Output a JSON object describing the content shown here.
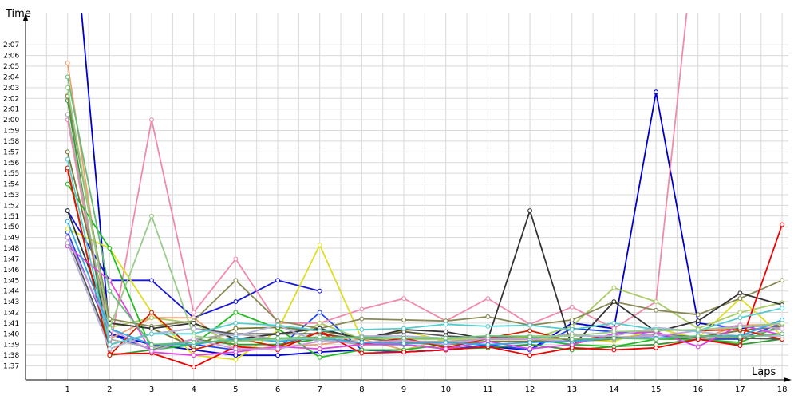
{
  "chart_data": {
    "type": "line",
    "xlabel": "Laps",
    "ylabel": "Time",
    "x": [
      1,
      2,
      3,
      4,
      5,
      6,
      7,
      8,
      9,
      10,
      11,
      12,
      13,
      14,
      15,
      16,
      17,
      18
    ],
    "y_tick_labels": [
      "1:37",
      "1:38",
      "1:39",
      "1:40",
      "1:41",
      "1:42",
      "1:43",
      "1:44",
      "1:45",
      "1:46",
      "1:47",
      "1:48",
      "1:49",
      "1:50",
      "1:51",
      "1:52",
      "1:53",
      "1:54",
      "1:55",
      "1:56",
      "1:57",
      "1:58",
      "1:59",
      "2:00",
      "2:01",
      "2:02",
      "2:03",
      "2:04",
      "2:05",
      "2:06",
      "2:07"
    ],
    "y_tick_values": [
      97,
      98,
      99,
      100,
      101,
      102,
      103,
      104,
      105,
      106,
      107,
      108,
      109,
      110,
      111,
      112,
      113,
      114,
      115,
      116,
      117,
      118,
      119,
      120,
      121,
      122,
      123,
      124,
      125,
      126,
      127
    ],
    "ylim": [
      95.7,
      130
    ],
    "xlim": [
      0,
      18.15
    ],
    "grid": true,
    "series": [
      {
        "color": "#0000cc",
        "values": [
          145,
          100,
          99,
          98.5,
          98,
          98,
          98.3,
          98.5,
          98.3,
          98.5,
          98.8,
          98.5,
          101,
          100.5,
          122.6,
          101,
          100.5,
          101
        ]
      },
      {
        "color": "#1818d8",
        "values": [
          111.5,
          105,
          105,
          101.5,
          103,
          105,
          104,
          null,
          null,
          null,
          null,
          null,
          null,
          null,
          null,
          null,
          null,
          null
        ]
      },
      {
        "color": "#2244ee",
        "values": [
          109.5,
          100,
          98.5,
          99,
          98.5,
          98.6,
          102,
          98.5,
          98.3,
          98.5,
          99,
          98.5,
          100.5,
          100.2,
          99.9,
          99.5,
          99.5,
          101
        ]
      },
      {
        "color": "#f08aaa",
        "values": [
          120,
          98.5,
          120,
          102,
          107,
          101,
          101,
          102.3,
          103.3,
          101.2,
          103.3,
          100.9,
          102.5,
          100.5,
          103,
          140,
          null,
          null
        ]
      },
      {
        "color": "#f0a070",
        "values": [
          125.3,
          99.5,
          101.5,
          101.5,
          98.5,
          98.8,
          99,
          99.5,
          98.5,
          99.5,
          99.8,
          99.5,
          99.5,
          99.6,
          100,
          99.5,
          100.8,
          100.9
        ]
      },
      {
        "color": "#dddd22",
        "values": [
          109.8,
          108,
          102,
          98,
          97.6,
          100.3,
          108.3,
          99.5,
          100.3,
          99.3,
          99.5,
          99.6,
          99.5,
          99.3,
          100.5,
          99.6,
          103.3,
          99.8
        ]
      },
      {
        "color": "#aacc66",
        "values": [
          122.3,
          100.6,
          101.5,
          101,
          98.9,
          98.5,
          101,
          99.5,
          99.5,
          99.5,
          99.5,
          99.5,
          100.7,
          104.3,
          103,
          100.5,
          102,
          102.9
        ]
      },
      {
        "color": "#22bb22",
        "values": [
          114,
          108,
          98.5,
          99,
          102,
          100.5,
          97.8,
          98.5,
          98.5,
          99,
          99.5,
          99.5,
          99,
          98.8,
          99.5,
          99.5,
          99.2,
          100.8
        ]
      },
      {
        "color": "#339933",
        "values": [
          121.8,
          98,
          98.5,
          99.5,
          99,
          99,
          99.5,
          99,
          99,
          98.6,
          98.7,
          99,
          98.5,
          98.8,
          99,
          99.5,
          99,
          99.5
        ]
      },
      {
        "color": "#888855",
        "values": [
          122.2,
          101.4,
          100.7,
          101.2,
          105,
          101.2,
          100.5,
          101.4,
          101.3,
          101.2,
          101.6,
          100.8,
          101.3,
          103,
          102.2,
          101.8,
          103.3,
          105
        ]
      },
      {
        "color": "#777733",
        "values": [
          117,
          101,
          100.5,
          98.8,
          100.5,
          100.6,
          100.3,
          99.6,
          99.2,
          99,
          99.3,
          99.3,
          99.3,
          99.5,
          100,
          99.7,
          100.3,
          100.7
        ]
      },
      {
        "color": "#333333",
        "values": [
          111.5,
          101,
          100.5,
          101,
          99.5,
          100,
          100.5,
          99.5,
          100.4,
          100.2,
          99.5,
          111.5,
          98.8,
          103,
          100.2,
          101.2,
          103.8,
          102.7
        ]
      },
      {
        "color": "#555555",
        "values": [
          109,
          99,
          100,
          100.5,
          100,
          100,
          100,
          99.5,
          100.2,
          99.8,
          99.6,
          99.8,
          99.5,
          99.7,
          99.6,
          99.6,
          99.6,
          99.5
        ]
      },
      {
        "color": "#aaaaaa",
        "values": [
          120.5,
          99.5,
          98.7,
          99.5,
          100,
          99.5,
          99.5,
          99,
          99.3,
          99.3,
          99.5,
          99.5,
          100,
          99.5,
          100,
          99.5,
          99.8,
          100.5
        ]
      },
      {
        "color": "#ee0000",
        "values": [
          115.3,
          98.1,
          98.2,
          96.9,
          98.8,
          98.5,
          100.2,
          98.2,
          98.3,
          98.5,
          98.8,
          98,
          98.7,
          98.5,
          98.7,
          99.5,
          98.9,
          110.2
        ]
      },
      {
        "color": "#cc2200",
        "values": [
          115.5,
          98,
          102,
          98.5,
          99.6,
          98.8,
          100.2,
          99,
          99.6,
          98.7,
          99.6,
          100.3,
          99.3,
          99.9,
          100.4,
          100.3,
          100.4,
          99.5
        ]
      },
      {
        "color": "#dd44dd",
        "values": [
          108.2,
          105,
          98.3,
          98,
          98.3,
          98.8,
          98.6,
          99,
          99,
          98.6,
          99.3,
          98.6,
          99,
          100,
          100.2,
          98.8,
          100.8,
          99.9
        ]
      },
      {
        "color": "#cc99dd",
        "values": [
          109,
          100.5,
          98.4,
          99.5,
          98.6,
          98.6,
          99.3,
          99.2,
          99.4,
          99,
          99.6,
          99.5,
          99.3,
          99.6,
          99.8,
          100.3,
          100.8,
          100.5
        ]
      },
      {
        "color": "#b4b4d8",
        "values": [
          108.5,
          98.6,
          100,
          100.5,
          99.8,
          100.8,
          99.2,
          99.8,
          99.8,
          99.6,
          99.8,
          99.7,
          99.8,
          99.8,
          100.6,
          100.2,
          99.8,
          99.8
        ]
      },
      {
        "color": "#55cccc",
        "values": [
          116.3,
          99,
          100,
          100,
          101,
          100.8,
          100.3,
          100.4,
          100.5,
          100.9,
          100.7,
          100.8,
          100.4,
          101,
          100.4,
          100.3,
          101.5,
          102.4
        ]
      },
      {
        "color": "#33aadd",
        "values": [
          110.5,
          100.5,
          99,
          99,
          99.6,
          99.3,
          99.6,
          99.2,
          99.1,
          99.2,
          99,
          99.2,
          99.3,
          99.6,
          99.6,
          99.8,
          99.8,
          101.3
        ]
      },
      {
        "color": "#99cc88",
        "values": [
          123,
          100.5,
          111,
          99.8,
          99.3,
          99.5,
          99.6,
          99.6,
          99.6,
          99.6,
          99.8,
          99.8,
          99.8,
          100.2,
          100.3,
          100.4,
          100.6,
          101
        ]
      },
      {
        "color": "#66bb77",
        "values": [
          124,
          104,
          99,
          99.2,
          99.4,
          99.6,
          99.7,
          99.7,
          99.6,
          99.6,
          99.8,
          99.7,
          99.5,
          99.6,
          99.5,
          99.8,
          99.7,
          100
        ]
      }
    ]
  }
}
